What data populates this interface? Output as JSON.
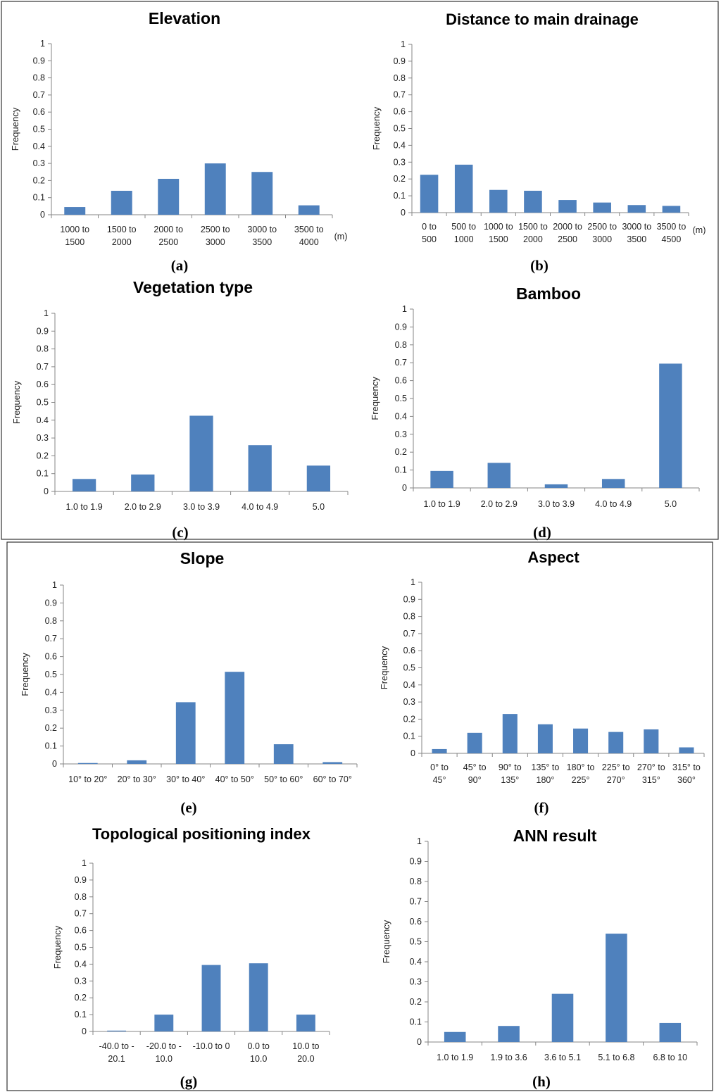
{
  "chart_data": [
    {
      "type": "bar",
      "panel": "(a)",
      "title": "Elevation",
      "ylabel": "Frequency",
      "unit": "(m)",
      "ylim": [
        0,
        1
      ],
      "yticks": [
        "0",
        "0.1",
        "0.2",
        "0.3",
        "0.4",
        "0.5",
        "0.6",
        "0.7",
        "0.8",
        "0.9",
        "1"
      ],
      "categories": [
        [
          "1000 to",
          "1500"
        ],
        [
          "1500 to",
          "2000"
        ],
        [
          "2000 to",
          "2500"
        ],
        [
          "2500 to",
          "3000"
        ],
        [
          "3000 to",
          "3500"
        ],
        [
          "3500 to",
          "4000"
        ]
      ],
      "values": [
        0.045,
        0.14,
        0.21,
        0.3,
        0.25,
        0.055
      ]
    },
    {
      "type": "bar",
      "panel": "(b)",
      "title": "Distance to main drainage",
      "ylabel": "Frequency",
      "unit": "(m)",
      "ylim": [
        0,
        1
      ],
      "yticks": [
        "0",
        "0.1",
        "0.2",
        "0.3",
        "0.4",
        "0.5",
        "0.6",
        "0.7",
        "0.8",
        "0.9",
        "1"
      ],
      "categories": [
        [
          "0 to",
          "500"
        ],
        [
          "500 to",
          "1000"
        ],
        [
          "1000 to",
          "1500"
        ],
        [
          "1500 to",
          "2000"
        ],
        [
          "2000 to",
          "2500"
        ],
        [
          "2500 to",
          "3000"
        ],
        [
          "3000 to",
          "3500"
        ],
        [
          "3500 to",
          "4500"
        ]
      ],
      "values": [
        0.225,
        0.285,
        0.135,
        0.13,
        0.075,
        0.06,
        0.045,
        0.04
      ]
    },
    {
      "type": "bar",
      "panel": "(c)",
      "title": "Vegetation type",
      "ylabel": "Frequency",
      "unit": "",
      "ylim": [
        0,
        1
      ],
      "yticks": [
        "0",
        "0.1",
        "0.2",
        "0.3",
        "0.4",
        "0.5",
        "0.6",
        "0.7",
        "0.8",
        "0.9",
        "1"
      ],
      "categories": [
        [
          "1.0 to 1.9"
        ],
        [
          "2.0 to 2.9"
        ],
        [
          "3.0 to 3.9"
        ],
        [
          "4.0 to 4.9"
        ],
        [
          "5.0"
        ]
      ],
      "values": [
        0.07,
        0.095,
        0.425,
        0.26,
        0.145
      ]
    },
    {
      "type": "bar",
      "panel": "(d)",
      "title": "Bamboo",
      "ylabel": "Frequency",
      "unit": "",
      "ylim": [
        0,
        1
      ],
      "yticks": [
        "0",
        "0.1",
        "0.2",
        "0.3",
        "0.4",
        "0.5",
        "0.6",
        "0.7",
        "0.8",
        "0.9",
        "1"
      ],
      "categories": [
        [
          "1.0 to 1.9"
        ],
        [
          "2.0 to 2.9"
        ],
        [
          "3.0 to 3.9"
        ],
        [
          "4.0 to 4.9"
        ],
        [
          "5.0"
        ]
      ],
      "values": [
        0.095,
        0.14,
        0.02,
        0.05,
        0.695
      ]
    },
    {
      "type": "bar",
      "panel": "(e)",
      "title": "Slope",
      "ylabel": "Frequency",
      "unit": "",
      "ylim": [
        0,
        1
      ],
      "yticks": [
        "0",
        "0.1",
        "0.2",
        "0.3",
        "0.4",
        "0.5",
        "0.6",
        "0.7",
        "0.8",
        "0.9",
        "1"
      ],
      "categories": [
        [
          "10° to 20°"
        ],
        [
          "20° to 30°"
        ],
        [
          "30° to 40°"
        ],
        [
          "40° to 50°"
        ],
        [
          "50° to 60°"
        ],
        [
          "60° to 70°"
        ]
      ],
      "values": [
        0.005,
        0.02,
        0.345,
        0.515,
        0.11,
        0.01
      ]
    },
    {
      "type": "bar",
      "panel": "(f)",
      "title": "Aspect",
      "ylabel": "Frequency",
      "unit": "",
      "ylim": [
        0,
        1
      ],
      "yticks": [
        "0",
        "0.1",
        "0.2",
        "0.3",
        "0.4",
        "0.5",
        "0.6",
        "0.7",
        "0.8",
        "0.9",
        "1"
      ],
      "categories": [
        [
          "0° to",
          "45°"
        ],
        [
          "45° to",
          "90°"
        ],
        [
          "90° to",
          "135°"
        ],
        [
          "135° to",
          "180°"
        ],
        [
          "180° to",
          "225°"
        ],
        [
          "225° to",
          "270°"
        ],
        [
          "270° to",
          "315°"
        ],
        [
          "315° to",
          "360°"
        ]
      ],
      "values": [
        0.025,
        0.12,
        0.23,
        0.17,
        0.145,
        0.125,
        0.14,
        0.035
      ]
    },
    {
      "type": "bar",
      "panel": "(g)",
      "title": "Topological positioning index",
      "ylabel": "Frequency",
      "unit": "",
      "ylim": [
        0,
        1
      ],
      "yticks": [
        "0",
        "0.1",
        "0.2",
        "0.3",
        "0.4",
        "0.5",
        "0.6",
        "0.7",
        "0.8",
        "0.9",
        "1"
      ],
      "categories": [
        [
          "-40.0 to -",
          "20.1"
        ],
        [
          "-20.0 to -",
          "10.0"
        ],
        [
          "-10.0 to 0"
        ],
        [
          "0.0 to",
          "10.0"
        ],
        [
          "10.0 to",
          "20.0"
        ]
      ],
      "values": [
        0.005,
        0.1,
        0.395,
        0.405,
        0.1
      ]
    },
    {
      "type": "bar",
      "panel": "(h)",
      "title": "ANN result",
      "ylabel": "Frequency",
      "unit": "",
      "ylim": [
        0,
        1
      ],
      "yticks": [
        "0",
        "0.1",
        "0.2",
        "0.3",
        "0.4",
        "0.5",
        "0.6",
        "0.7",
        "0.8",
        "0.9",
        "1"
      ],
      "categories": [
        [
          "1.0 to 1.9"
        ],
        [
          "1.9 to 3.6"
        ],
        [
          "3.6 to 5.1"
        ],
        [
          "5.1 to 6.8"
        ],
        [
          "6.8 to 10"
        ]
      ],
      "values": [
        0.05,
        0.08,
        0.24,
        0.54,
        0.095
      ]
    }
  ],
  "colors": {
    "bar": "#4f81bd",
    "axis": "#868686",
    "frame": "#333333"
  }
}
